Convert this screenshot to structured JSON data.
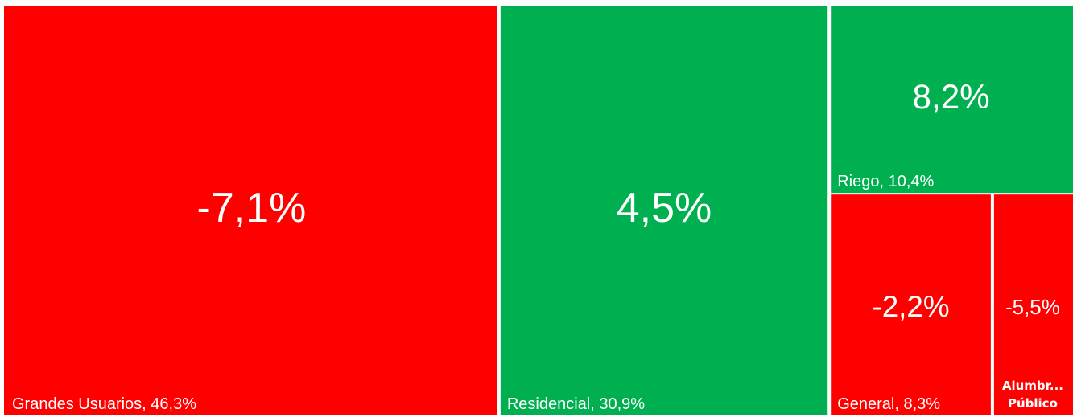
{
  "chart_data": {
    "type": "treemap",
    "labels": [
      "Grandes Usuarios, 46,3%",
      "Residencial, 30,9%",
      "Riego, 10,4%",
      "General, 8,3%",
      "Alumbr... Público"
    ],
    "values": [
      46.3,
      30.9,
      10.4,
      8.3,
      4.1
    ],
    "change": [
      -7.1,
      4.5,
      8.2,
      -2.2,
      -5.5
    ],
    "change_labels": [
      "-7,1%",
      "4,5%",
      "8,2%",
      "-2,2%",
      "-5,5%"
    ],
    "positive_color": "#00b050",
    "negative_color": "#ff0000"
  }
}
